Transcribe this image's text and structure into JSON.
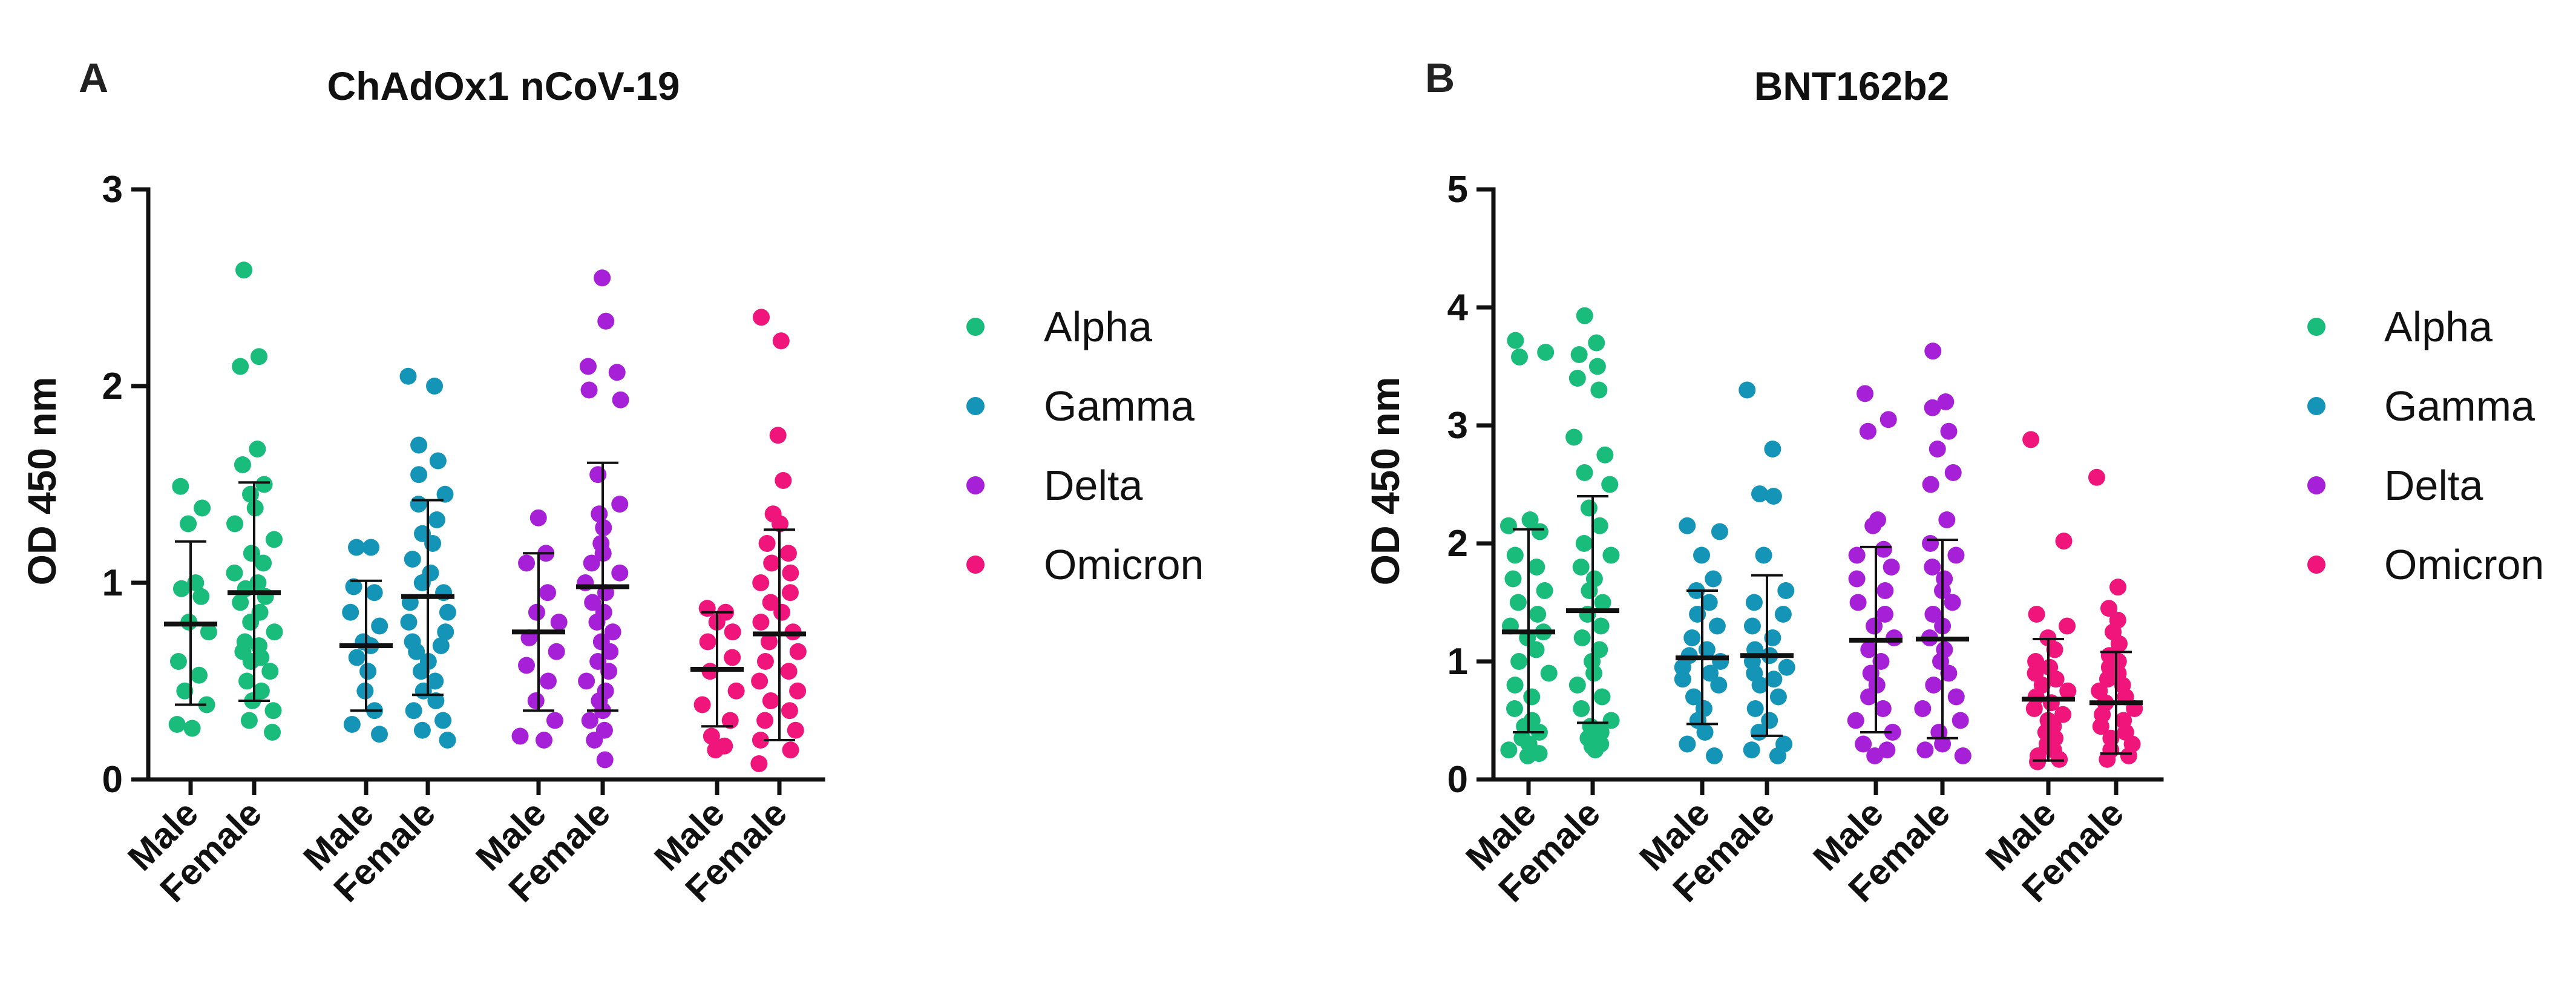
{
  "chart_data": [
    {
      "panel": "A",
      "title": "ChAdOx1 nCoV-19",
      "type": "scatter",
      "ylabel": "OD 450 nm",
      "ylim": [
        0,
        3
      ],
      "yticks": [
        "0",
        "1",
        "2",
        "3"
      ],
      "groups": [
        {
          "variant": "Alpha",
          "sex": "Male",
          "color": "#1ABC7C",
          "mean": 0.79,
          "sd_low": 0.38,
          "sd_high": 1.21,
          "points": [
            1.49,
            1.38,
            1.3,
            1.0,
            0.97,
            0.93,
            0.8,
            0.75,
            0.6,
            0.53,
            0.45,
            0.38,
            0.28,
            0.26
          ]
        },
        {
          "variant": "Alpha",
          "sex": "Female",
          "color": "#1ABC7C",
          "mean": 0.95,
          "sd_low": 0.4,
          "sd_high": 1.51,
          "points": [
            2.59,
            2.15,
            2.1,
            1.68,
            1.6,
            1.5,
            1.45,
            1.38,
            1.3,
            1.22,
            1.15,
            1.1,
            1.05,
            1.0,
            0.97,
            0.93,
            0.9,
            0.85,
            0.8,
            0.75,
            0.7,
            0.68,
            0.65,
            0.62,
            0.6,
            0.55,
            0.5,
            0.45,
            0.4,
            0.35,
            0.3,
            0.24
          ]
        },
        {
          "variant": "Gamma",
          "sex": "Male",
          "color": "#1495B8",
          "mean": 0.68,
          "sd_low": 0.35,
          "sd_high": 1.01,
          "points": [
            1.18,
            1.18,
            0.98,
            0.95,
            0.85,
            0.78,
            0.7,
            0.68,
            0.62,
            0.55,
            0.45,
            0.35,
            0.28,
            0.23
          ]
        },
        {
          "variant": "Gamma",
          "sex": "Female",
          "color": "#1495B8",
          "mean": 0.93,
          "sd_low": 0.43,
          "sd_high": 1.42,
          "points": [
            2.05,
            2.0,
            1.7,
            1.62,
            1.55,
            1.45,
            1.4,
            1.32,
            1.25,
            1.2,
            1.12,
            1.05,
            1.0,
            0.95,
            0.9,
            0.85,
            0.8,
            0.75,
            0.7,
            0.68,
            0.65,
            0.6,
            0.55,
            0.5,
            0.45,
            0.4,
            0.35,
            0.3,
            0.25,
            0.2
          ]
        },
        {
          "variant": "Delta",
          "sex": "Male",
          "color": "#A620D8",
          "mean": 0.75,
          "sd_low": 0.35,
          "sd_high": 1.15,
          "points": [
            1.33,
            1.15,
            1.1,
            0.95,
            0.85,
            0.8,
            0.72,
            0.65,
            0.58,
            0.5,
            0.4,
            0.3,
            0.22,
            0.2
          ]
        },
        {
          "variant": "Delta",
          "sex": "Female",
          "color": "#A620D8",
          "mean": 0.98,
          "sd_low": 0.35,
          "sd_high": 1.61,
          "points": [
            2.55,
            2.33,
            2.1,
            2.07,
            1.98,
            1.93,
            1.55,
            1.4,
            1.35,
            1.28,
            1.2,
            1.15,
            1.1,
            1.05,
            1.0,
            0.95,
            0.9,
            0.85,
            0.8,
            0.75,
            0.7,
            0.65,
            0.6,
            0.55,
            0.5,
            0.45,
            0.4,
            0.35,
            0.3,
            0.25,
            0.2,
            0.1
          ]
        },
        {
          "variant": "Omicron",
          "sex": "Male",
          "color": "#F0157A",
          "mean": 0.56,
          "sd_low": 0.27,
          "sd_high": 0.85,
          "points": [
            0.87,
            0.85,
            0.8,
            0.75,
            0.7,
            0.62,
            0.55,
            0.45,
            0.38,
            0.3,
            0.22,
            0.17,
            0.15
          ]
        },
        {
          "variant": "Omicron",
          "sex": "Female",
          "color": "#F0157A",
          "mean": 0.74,
          "sd_low": 0.2,
          "sd_high": 1.27,
          "points": [
            2.35,
            2.23,
            1.75,
            1.52,
            1.35,
            1.3,
            1.2,
            1.15,
            1.1,
            1.05,
            1.0,
            0.95,
            0.9,
            0.85,
            0.8,
            0.75,
            0.7,
            0.65,
            0.6,
            0.55,
            0.5,
            0.45,
            0.4,
            0.35,
            0.3,
            0.25,
            0.2,
            0.15,
            0.08
          ]
        }
      ],
      "x_tick_labels": [
        "Male",
        "Female",
        "Male",
        "Female",
        "Male",
        "Female",
        "Male",
        "Female"
      ],
      "legend": {
        "placement": "right",
        "items": [
          {
            "name": "Alpha",
            "color": "#1ABC7C"
          },
          {
            "name": "Gamma",
            "color": "#1495B8"
          },
          {
            "name": "Delta",
            "color": "#A620D8"
          },
          {
            "name": "Omicron",
            "color": "#F0157A"
          }
        ]
      }
    },
    {
      "panel": "B",
      "title": "BNT162b2",
      "type": "scatter",
      "ylabel": "OD 450 nm",
      "ylim": [
        0,
        5
      ],
      "yticks": [
        "0",
        "1",
        "2",
        "3",
        "4",
        "5"
      ],
      "groups": [
        {
          "variant": "Alpha",
          "sex": "Male",
          "color": "#1ABC7C",
          "mean": 1.25,
          "sd_low": 0.4,
          "sd_high": 2.12,
          "points": [
            3.72,
            3.62,
            3.58,
            2.2,
            2.15,
            2.1,
            1.9,
            1.8,
            1.7,
            1.6,
            1.5,
            1.4,
            1.3,
            1.25,
            1.2,
            1.1,
            1.0,
            0.9,
            0.8,
            0.7,
            0.6,
            0.5,
            0.45,
            0.4,
            0.35,
            0.3,
            0.25,
            0.22,
            0.2
          ]
        },
        {
          "variant": "Alpha",
          "sex": "Female",
          "color": "#1ABC7C",
          "mean": 1.43,
          "sd_low": 0.48,
          "sd_high": 2.4,
          "points": [
            3.93,
            3.7,
            3.6,
            3.5,
            3.4,
            3.3,
            2.9,
            2.75,
            2.6,
            2.5,
            2.3,
            2.15,
            2.0,
            1.9,
            1.8,
            1.7,
            1.6,
            1.5,
            1.4,
            1.3,
            1.2,
            1.1,
            1.0,
            0.9,
            0.8,
            0.7,
            0.6,
            0.5,
            0.45,
            0.4,
            0.35,
            0.3,
            0.28,
            0.25
          ]
        },
        {
          "variant": "Gamma",
          "sex": "Male",
          "color": "#1495B8",
          "mean": 1.03,
          "sd_low": 0.47,
          "sd_high": 1.6,
          "points": [
            2.15,
            2.1,
            1.9,
            1.7,
            1.6,
            1.5,
            1.4,
            1.3,
            1.2,
            1.1,
            1.05,
            1.0,
            0.95,
            0.9,
            0.85,
            0.8,
            0.7,
            0.6,
            0.5,
            0.4,
            0.3,
            0.2
          ]
        },
        {
          "variant": "Gamma",
          "sex": "Female",
          "color": "#1495B8",
          "mean": 1.05,
          "sd_low": 0.37,
          "sd_high": 1.73,
          "points": [
            3.3,
            2.8,
            2.42,
            2.4,
            1.9,
            1.6,
            1.5,
            1.4,
            1.3,
            1.2,
            1.1,
            1.05,
            1.0,
            0.95,
            0.9,
            0.85,
            0.8,
            0.7,
            0.6,
            0.5,
            0.4,
            0.3,
            0.25,
            0.2
          ]
        },
        {
          "variant": "Delta",
          "sex": "Male",
          "color": "#A620D8",
          "mean": 1.18,
          "sd_low": 0.4,
          "sd_high": 1.97,
          "points": [
            3.27,
            3.05,
            2.95,
            2.2,
            2.15,
            1.95,
            1.9,
            1.8,
            1.7,
            1.6,
            1.5,
            1.4,
            1.3,
            1.2,
            1.1,
            1.0,
            0.9,
            0.8,
            0.7,
            0.6,
            0.5,
            0.4,
            0.3,
            0.25,
            0.2
          ]
        },
        {
          "variant": "Delta",
          "sex": "Female",
          "color": "#A620D8",
          "mean": 1.19,
          "sd_low": 0.35,
          "sd_high": 2.03,
          "points": [
            3.63,
            3.2,
            3.15,
            2.95,
            2.8,
            2.6,
            2.5,
            2.2,
            2.0,
            1.9,
            1.8,
            1.7,
            1.6,
            1.5,
            1.4,
            1.3,
            1.2,
            1.1,
            1.0,
            0.9,
            0.8,
            0.7,
            0.6,
            0.5,
            0.4,
            0.3,
            0.25,
            0.2
          ]
        },
        {
          "variant": "Omicron",
          "sex": "Male",
          "color": "#F0157A",
          "mean": 0.68,
          "sd_low": 0.16,
          "sd_high": 1.19,
          "points": [
            2.88,
            2.02,
            1.4,
            1.3,
            1.2,
            1.1,
            1.0,
            0.95,
            0.9,
            0.85,
            0.8,
            0.75,
            0.7,
            0.65,
            0.6,
            0.55,
            0.5,
            0.45,
            0.4,
            0.35,
            0.3,
            0.25,
            0.2,
            0.17,
            0.15
          ]
        },
        {
          "variant": "Omicron",
          "sex": "Female",
          "color": "#F0157A",
          "mean": 0.65,
          "sd_low": 0.22,
          "sd_high": 1.08,
          "points": [
            2.56,
            1.63,
            1.45,
            1.35,
            1.25,
            1.15,
            1.05,
            1.0,
            0.95,
            0.9,
            0.85,
            0.8,
            0.75,
            0.7,
            0.65,
            0.6,
            0.55,
            0.5,
            0.45,
            0.4,
            0.35,
            0.3,
            0.25,
            0.2,
            0.17
          ]
        }
      ],
      "x_tick_labels": [
        "Male",
        "Female",
        "Male",
        "Female",
        "Male",
        "Female",
        "Male",
        "Female"
      ],
      "legend": {
        "placement": "right",
        "items": [
          {
            "name": "Alpha",
            "color": "#1ABC7C"
          },
          {
            "name": "Gamma",
            "color": "#1495B8"
          },
          {
            "name": "Delta",
            "color": "#A620D8"
          },
          {
            "name": "Omicron",
            "color": "#F0157A"
          }
        ]
      }
    }
  ]
}
